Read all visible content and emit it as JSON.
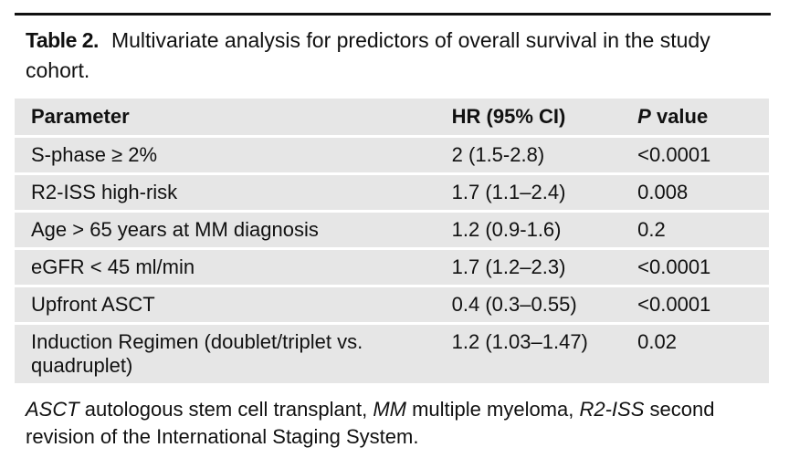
{
  "caption": {
    "label": "Table 2.",
    "text": "Multivariate analysis for predictors of overall survival in the study cohort."
  },
  "table": {
    "headers": {
      "parameter": "Parameter",
      "hr": "HR (95% CI)",
      "p_italic": "P",
      "p_rest": " value"
    },
    "rows": [
      {
        "parameter": "S-phase ≥ 2%",
        "hr": "2 (1.5-2.8)",
        "p": "<0.0001"
      },
      {
        "parameter": "R2-ISS high-risk",
        "hr": "1.7 (1.1–2.4)",
        "p": "0.008"
      },
      {
        "parameter": "Age > 65 years at MM diagnosis",
        "hr": "1.2 (0.9-1.6)",
        "p": "0.2"
      },
      {
        "parameter": "eGFR < 45 ml/min",
        "hr": "1.7 (1.2–2.3)",
        "p": "<0.0001"
      },
      {
        "parameter": "Upfront ASCT",
        "hr": "0.4 (0.3–0.55)",
        "p": "<0.0001"
      },
      {
        "parameter": "Induction Regimen (doublet/triplet vs. quadruplet)",
        "hr": "1.2 (1.03–1.47)",
        "p": "0.02"
      }
    ]
  },
  "footnote": {
    "abbr1": "ASCT",
    "def1": " autologous stem cell transplant, ",
    "abbr2": "MM",
    "def2": " multiple myeloma, ",
    "abbr3": "R2-ISS",
    "def3": " second revision of the International Staging System."
  }
}
